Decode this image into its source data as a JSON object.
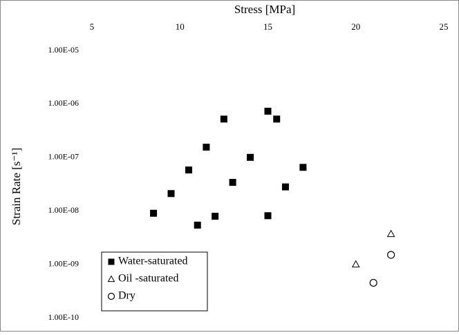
{
  "chart_data": {
    "type": "scatter",
    "xlabel": "Stress [MPa]",
    "ylabel": "Strain Rate [s⁻¹]",
    "xlim": [
      5,
      25
    ],
    "xticks": [
      5,
      10,
      15,
      20,
      25
    ],
    "ylim": [
      1e-10,
      1e-05
    ],
    "log_y": true,
    "yticks": [
      {
        "value": 1e-05,
        "label": "1.00E-05"
      },
      {
        "value": 1e-06,
        "label": "1.00E-06"
      },
      {
        "value": 1e-07,
        "label": "1.00E-07"
      },
      {
        "value": 1e-08,
        "label": "1.00E-08"
      },
      {
        "value": 1e-09,
        "label": "1.00E-09"
      },
      {
        "value": 1e-10,
        "label": "1.00E-10"
      }
    ],
    "legend": "lower left",
    "series": [
      {
        "name": "Water-saturated",
        "marker": "square",
        "color": "#000000",
        "x": [
          8.5,
          9.5,
          10.5,
          11,
          11.5,
          12,
          12.5,
          13,
          14,
          15,
          15,
          15.5,
          16,
          17
        ],
        "values": [
          9e-09,
          2.1e-08,
          5.8e-08,
          5.4e-09,
          1.55e-07,
          7.9e-09,
          5.2e-07,
          3.4e-08,
          1e-07,
          7.3e-07,
          8.1e-09,
          5.2e-07,
          2.8e-08,
          6.5e-08
        ]
      },
      {
        "name": "Oil -saturated",
        "marker": "triangle",
        "color": "#000000",
        "x": [
          20,
          22
        ],
        "values": [
          1e-09,
          3.7e-09
        ]
      },
      {
        "name": "Dry",
        "marker": "circle",
        "color": "#000000",
        "x": [
          21,
          22
        ],
        "values": [
          4.5e-10,
          1.5e-09
        ]
      }
    ]
  }
}
